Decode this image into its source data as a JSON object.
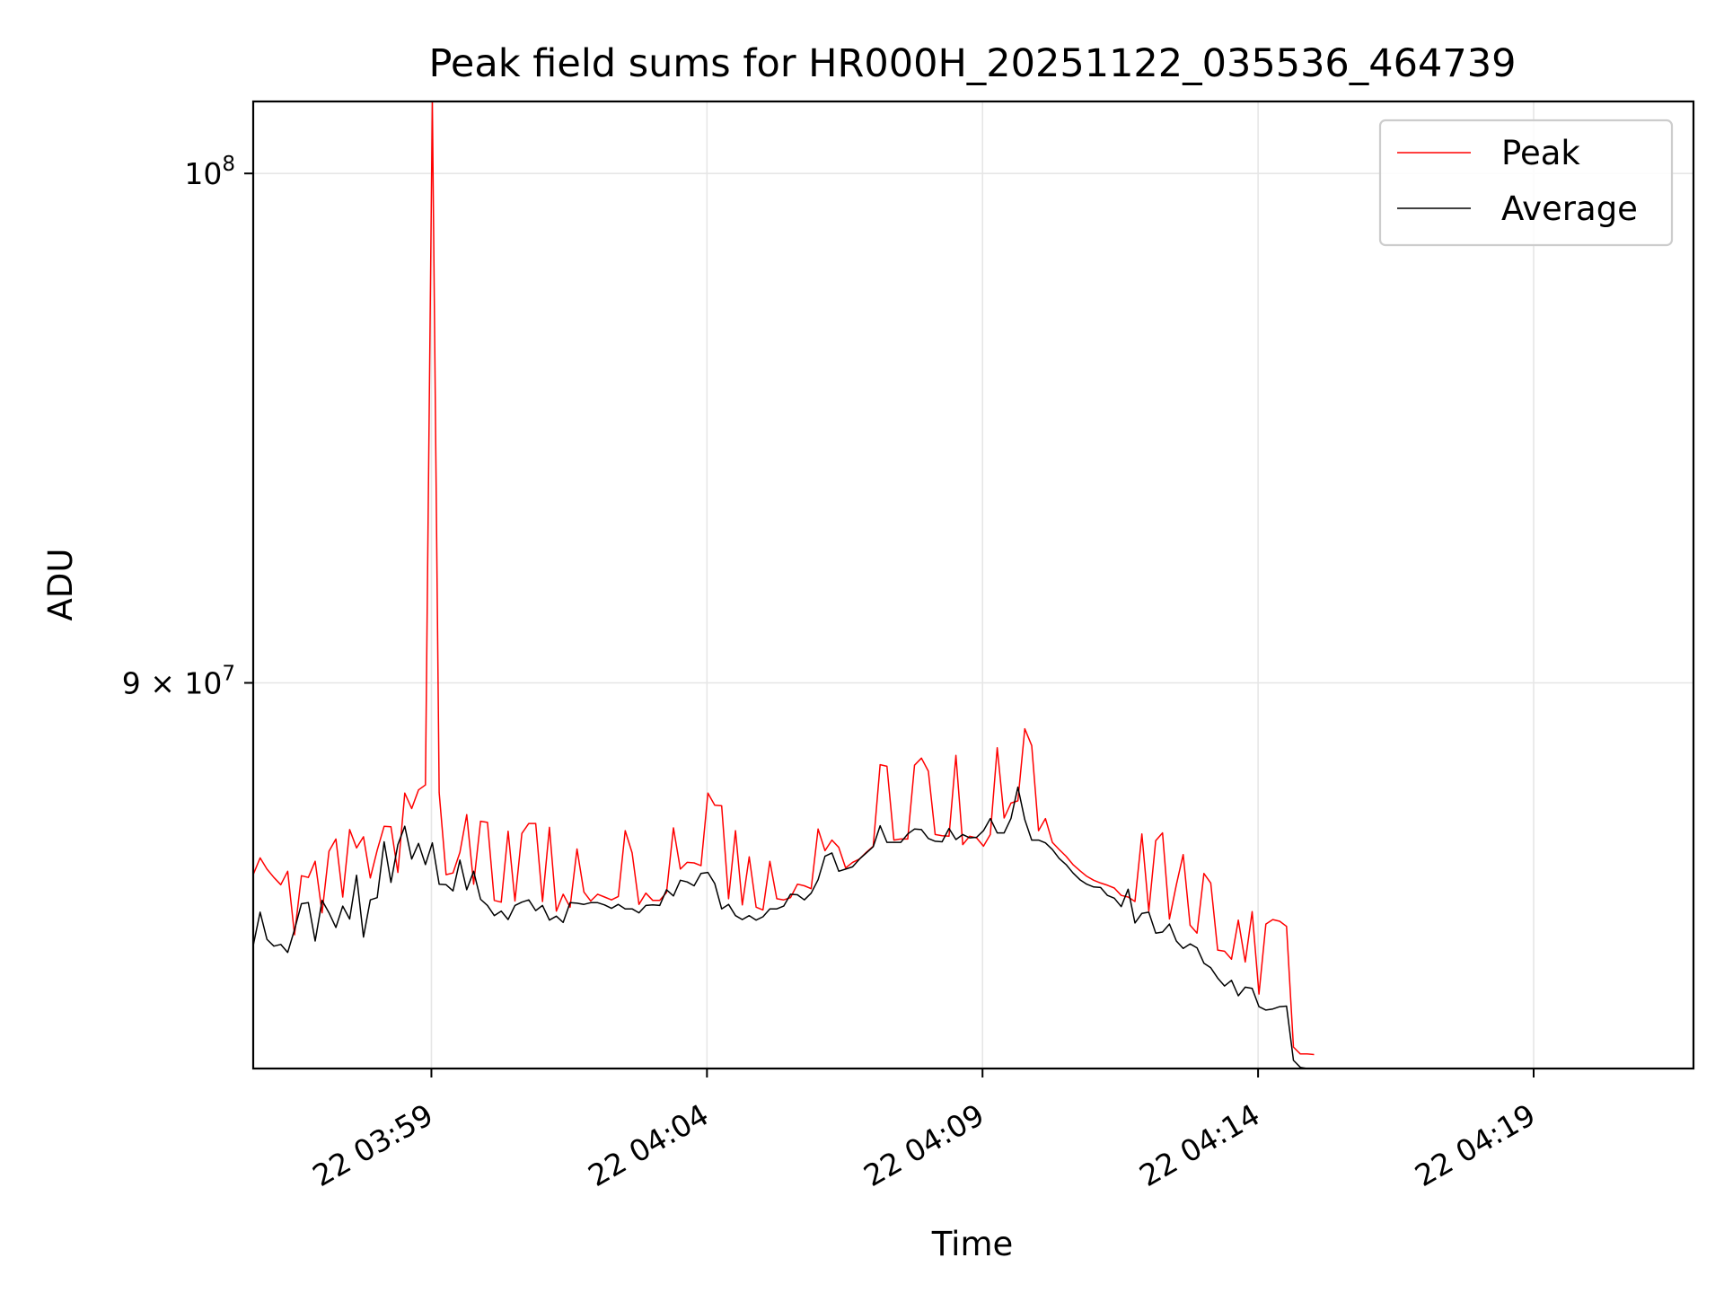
{
  "chart_data": {
    "type": "line",
    "title": "Peak field sums for HR000H_20251122_035536_464739",
    "xlabel": "Time",
    "ylabel": "ADU",
    "y_scale": "log",
    "grid": true,
    "legend_position": "top-right",
    "xlim": [
      "2025-11-22 03:55:46",
      "2025-11-22 04:21:54"
    ],
    "ylim": [
      83100000,
      101500000
    ],
    "x_ticks": [
      {
        "value": "2025-11-22 03:59:00",
        "label": "22 03:59"
      },
      {
        "value": "2025-11-22 04:04:00",
        "label": "22 04:04"
      },
      {
        "value": "2025-11-22 04:09:00",
        "label": "22 04:09"
      },
      {
        "value": "2025-11-22 04:14:00",
        "label": "22 04:14"
      },
      {
        "value": "2025-11-22 04:19:00",
        "label": "22 04:19"
      }
    ],
    "y_ticks": [
      {
        "value": 100000000,
        "base": "10",
        "exp": "8"
      },
      {
        "value": 90000000,
        "mant": "9 × 10",
        "exp": "7"
      }
    ],
    "x_start": "2025-11-22 03:55:46",
    "x_step_seconds": 7.5,
    "series": [
      {
        "name": "Peak",
        "color": "#ff0000",
        "values": [
          86500000,
          86800000,
          86600000,
          86450000,
          86320000,
          86560000,
          85430000,
          86480000,
          86450000,
          86740000,
          85820000,
          86920000,
          87140000,
          86100000,
          87310000,
          86980000,
          87180000,
          86440000,
          86940000,
          87370000,
          87360000,
          86540000,
          87970000,
          87690000,
          88030000,
          88120000,
          101500000,
          87980000,
          86500000,
          86530000,
          86900000,
          87580000,
          86330000,
          87460000,
          87440000,
          86040000,
          86010000,
          87280000,
          86030000,
          87240000,
          87420000,
          87420000,
          86020000,
          87350000,
          85850000,
          86150000,
          85920000,
          86960000,
          86190000,
          86030000,
          86150000,
          86100000,
          86050000,
          86110000,
          87290000,
          86890000,
          85970000,
          86170000,
          86040000,
          86040000,
          86180000,
          87340000,
          86600000,
          86720000,
          86710000,
          86660000,
          87970000,
          87750000,
          87740000,
          86070000,
          87290000,
          85960000,
          86820000,
          85920000,
          85870000,
          86740000,
          86070000,
          86050000,
          86090000,
          86330000,
          86300000,
          86250000,
          87320000,
          86930000,
          87120000,
          86990000,
          86620000,
          86720000,
          86780000,
          86900000,
          87010000,
          88490000,
          88460000,
          87120000,
          87140000,
          87140000,
          88480000,
          88610000,
          88370000,
          87220000,
          87200000,
          87190000,
          88660000,
          87040000,
          87190000,
          87160000,
          87010000,
          87220000,
          88800000,
          87520000,
          87790000,
          87830000,
          89150000,
          88840000,
          87290000,
          87510000,
          87080000,
          86950000,
          86830000,
          86680000,
          86570000,
          86470000,
          86400000,
          86350000,
          86310000,
          86260000,
          86130000,
          86100000,
          86020000,
          87230000,
          85850000,
          87110000,
          87250000,
          85710000,
          86320000,
          86860000,
          85600000,
          85460000,
          86520000,
          86350000,
          85160000,
          85140000,
          85000000,
          85690000,
          84950000,
          85840000,
          84390000,
          85620000,
          85700000,
          85670000,
          85580000,
          83470000,
          83350000,
          83350000,
          83340000
        ]
      },
      {
        "name": "Average",
        "color": "#000000",
        "values": [
          85240000,
          85830000,
          85350000,
          85230000,
          85260000,
          85120000,
          85520000,
          85980000,
          86000000,
          85320000,
          86040000,
          85820000,
          85560000,
          85940000,
          85710000,
          86490000,
          85390000,
          86050000,
          86090000,
          87090000,
          86360000,
          87040000,
          87370000,
          86780000,
          87060000,
          86680000,
          87070000,
          86330000,
          86320000,
          86210000,
          86760000,
          86230000,
          86560000,
          86060000,
          85950000,
          85770000,
          85850000,
          85700000,
          85950000,
          86010000,
          86050000,
          85860000,
          85950000,
          85690000,
          85760000,
          85650000,
          86000000,
          85990000,
          85970000,
          86000000,
          86000000,
          85960000,
          85900000,
          85970000,
          85890000,
          85890000,
          85820000,
          85950000,
          85960000,
          85950000,
          86230000,
          86120000,
          86400000,
          86370000,
          86300000,
          86520000,
          86540000,
          86340000,
          85890000,
          85970000,
          85770000,
          85700000,
          85770000,
          85690000,
          85750000,
          85890000,
          85890000,
          85940000,
          86150000,
          86140000,
          86050000,
          86170000,
          86410000,
          86830000,
          86890000,
          86560000,
          86600000,
          86640000,
          86780000,
          86890000,
          87000000,
          87380000,
          87080000,
          87080000,
          87080000,
          87230000,
          87320000,
          87310000,
          87150000,
          87100000,
          87090000,
          87330000,
          87130000,
          87220000,
          87160000,
          87170000,
          87290000,
          87510000,
          87250000,
          87250000,
          87510000,
          88080000,
          87490000,
          87120000,
          87120000,
          87070000,
          86950000,
          86790000,
          86680000,
          86530000,
          86410000,
          86330000,
          86280000,
          86270000,
          86130000,
          86080000,
          85930000,
          86240000,
          85640000,
          85810000,
          85830000,
          85460000,
          85480000,
          85620000,
          85320000,
          85190000,
          85270000,
          85200000,
          84930000,
          84850000,
          84670000,
          84530000,
          84630000,
          84360000,
          84510000,
          84490000,
          84170000,
          84110000,
          84130000,
          84170000,
          84180000,
          83240000,
          83120000,
          83100000,
          83100000
        ]
      }
    ]
  }
}
